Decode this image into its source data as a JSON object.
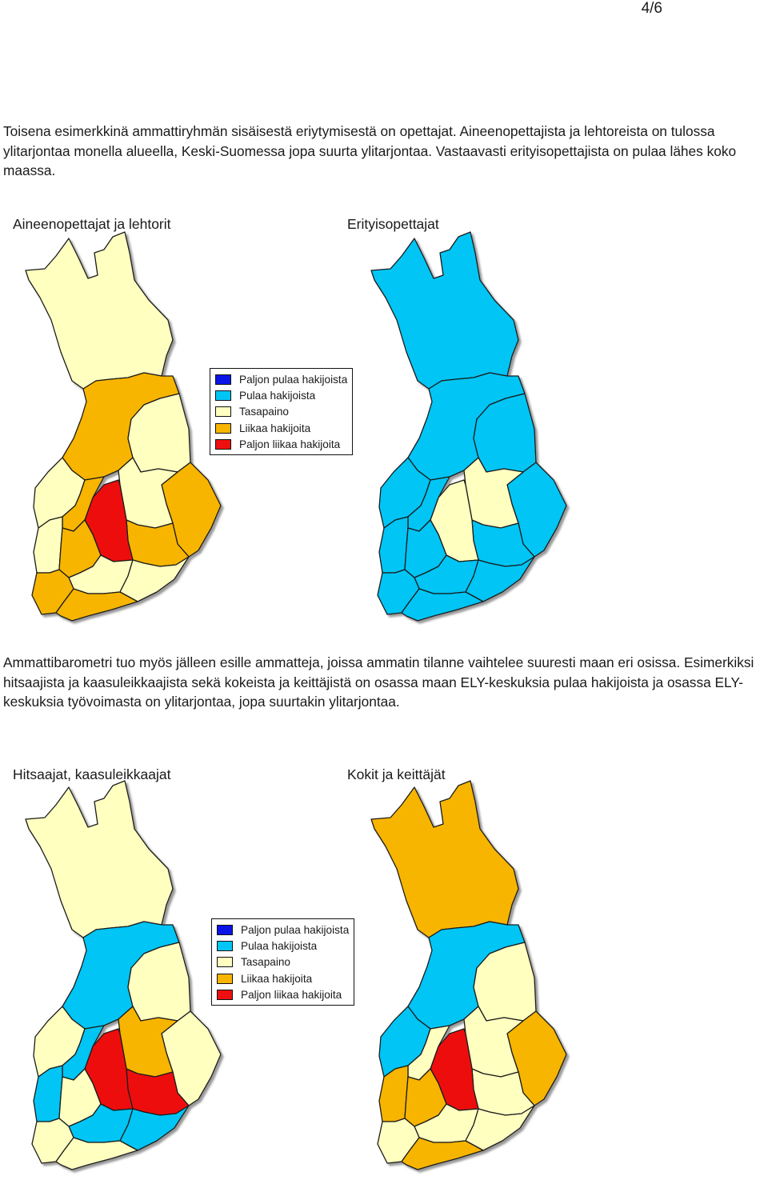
{
  "page_number": "4/6",
  "intro_paragraph": "Toisena esimerkkinä ammattiryhmän sisäisestä eriytymisestä on opettajat. Aineenopettajista ja lehtoreista on tulossa ylitarjontaa monella alueella, Keski-Suomessa jopa suurta ylitarjontaa. Vastaavasti erityisopettajista on pulaa lähes koko maassa.",
  "second_paragraph": "Ammattibarometri tuo myös jälleen esille ammatteja, joissa ammatin tilanne vaihtelee suuresti maan eri osissa. Esimerkiksi hitsaajista ja kaasuleikkaajista sekä kokeista ja keittäjistä on osassa maan ELY-keskuksia pulaa hakijoista ja osassa ELY-keskuksia työvoimasta on ylitarjontaa, jopa suurtakin ylitarjontaa.",
  "map_titles": {
    "aineenopettajat": "Aineenopettajat ja lehtorit",
    "erityisopettajat": "Erityisopettajat",
    "hitsaajat": "Hitsaajat, kaasuleikkaajat",
    "kokit": "Kokit ja keittäjät"
  },
  "legend": [
    {
      "label": "Paljon pulaa hakijoista",
      "color": "#0a14e6"
    },
    {
      "label": "Pulaa hakijoista",
      "color": "#00c5f5"
    },
    {
      "label": "Tasapaino",
      "color": "#ffffc0"
    },
    {
      "label": "Liikaa hakijoita",
      "color": "#f7b500"
    },
    {
      "label": "Paljon liikaa hakijoita",
      "color": "#ee1010"
    }
  ],
  "regions": [
    "lappi",
    "pohjois-pohjanmaa",
    "kainuu",
    "pohjois-karjala",
    "pohjois-savo",
    "etela-savo",
    "keski-suomi",
    "pohjanmaa",
    "etela-pohjanmaa",
    "satakunta",
    "pirkanmaa",
    "hame",
    "kaakkois-suomi",
    "varsinais-suomi",
    "uusimaa"
  ],
  "maps": {
    "aineenopettajat": {
      "lappi": "#ffffc0",
      "pohjois-pohjanmaa": "#f7b500",
      "kainuu": "#ffffc0",
      "pohjois-karjala": "#f7b500",
      "pohjois-savo": "#ffffc0",
      "etela-savo": "#f7b500",
      "keski-suomi": "#ee1010",
      "pohjanmaa": "#ffffc0",
      "etela-pohjanmaa": "#f7b500",
      "satakunta": "#ffffc0",
      "pirkanmaa": "#f7b500",
      "hame": "#ffffc0",
      "kaakkois-suomi": "#ffffc0",
      "varsinais-suomi": "#f7b500",
      "uusimaa": "#f7b500"
    },
    "erityisopettajat": {
      "lappi": "#00c5f5",
      "pohjois-pohjanmaa": "#00c5f5",
      "kainuu": "#00c5f5",
      "pohjois-karjala": "#00c5f5",
      "pohjois-savo": "#ffffc0",
      "etela-savo": "#00c5f5",
      "keski-suomi": "#ffffc0",
      "pohjanmaa": "#00c5f5",
      "etela-pohjanmaa": "#00c5f5",
      "satakunta": "#00c5f5",
      "pirkanmaa": "#00c5f5",
      "hame": "#00c5f5",
      "kaakkois-suomi": "#00c5f5",
      "varsinais-suomi": "#00c5f5",
      "uusimaa": "#00c5f5"
    },
    "hitsaajat": {
      "lappi": "#ffffc0",
      "pohjois-pohjanmaa": "#00c5f5",
      "kainuu": "#ffffc0",
      "pohjois-karjala": "#ffffc0",
      "pohjois-savo": "#f7b500",
      "etela-savo": "#ee1010",
      "keski-suomi": "#ee1010",
      "pohjanmaa": "#ffffc0",
      "etela-pohjanmaa": "#00c5f5",
      "satakunta": "#00c5f5",
      "pirkanmaa": "#ffffc0",
      "hame": "#00c5f5",
      "kaakkois-suomi": "#00c5f5",
      "varsinais-suomi": "#ffffc0",
      "uusimaa": "#ffffc0"
    },
    "kokit": {
      "lappi": "#f7b500",
      "pohjois-pohjanmaa": "#00c5f5",
      "kainuu": "#ffffc0",
      "pohjois-karjala": "#f7b500",
      "pohjois-savo": "#ffffc0",
      "etela-savo": "#ffffc0",
      "keski-suomi": "#ee1010",
      "pohjanmaa": "#00c5f5",
      "etela-pohjanmaa": "#ffffc0",
      "satakunta": "#f7b500",
      "pirkanmaa": "#f7b500",
      "hame": "#ffffc0",
      "kaakkois-suomi": "#ffffc0",
      "varsinais-suomi": "#ffffc0",
      "uusimaa": "#f7b500"
    }
  }
}
